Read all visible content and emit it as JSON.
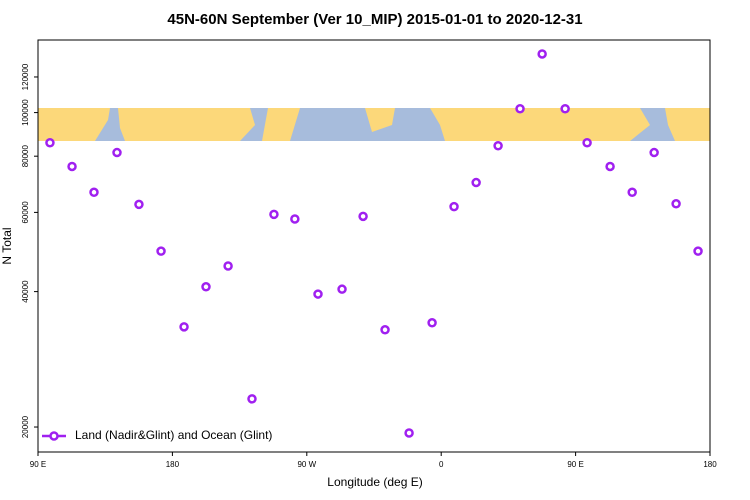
{
  "chart_data": {
    "type": "scatter",
    "title": "45N-60N September (Ver 10_MIP)   2015-01-01 to 2020-12-31",
    "x_label": "Longitude (deg E)",
    "y_label": "N Total",
    "xlim": [
      90,
      540
    ],
    "xticks": [
      {
        "value": 90,
        "label": "90 E"
      },
      180,
      {
        "value": 270,
        "label": "90 W"
      },
      {
        "value": 360,
        "label": "0"
      },
      {
        "value": 450,
        "label": "90 E"
      },
      {
        "value": 540,
        "label": "180"
      }
    ],
    "ylim": [
      17600,
      145000
    ],
    "ylog": true,
    "yticks": [
      20000,
      40000,
      60000,
      80000,
      100000,
      120000
    ],
    "legend_position": "lower left",
    "series": [
      {
        "name": "Land (Nadir&Glint) and Ocean (Glint)",
        "color": "#a020f0",
        "x": [
          98,
          112.8,
          127.5,
          142.9,
          157.6,
          172.4,
          187.8,
          202.5,
          217.3,
          233.3,
          248,
          262,
          277.5,
          293.6,
          307.7,
          322.4,
          338.5,
          353.9,
          368.6,
          383.4,
          398.1,
          412.8,
          427.6,
          443,
          457.7,
          473.1,
          487.9,
          502.6,
          517.3,
          532
        ],
        "values": [
          85700,
          75900,
          66500,
          81500,
          62500,
          49200,
          33400,
          41000,
          45600,
          23100,
          59400,
          58000,
          39500,
          40500,
          58800,
          32900,
          19400,
          34100,
          61800,
          69900,
          84400,
          102000,
          135000,
          102000,
          85700,
          75900,
          66500,
          81500,
          62700,
          49200
        ]
      }
    ]
  }
}
